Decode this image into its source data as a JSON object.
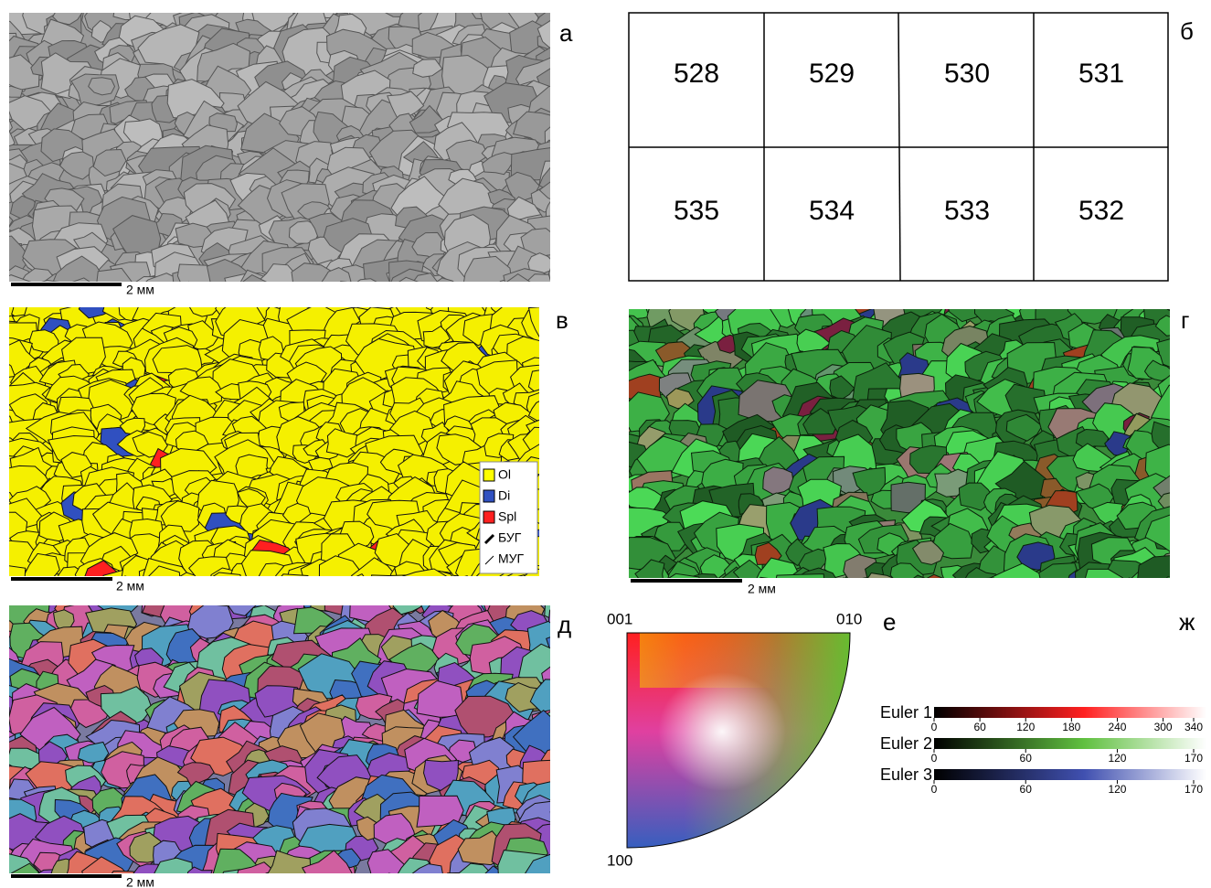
{
  "panels": {
    "a": {
      "letter": "а",
      "scale": "2 мм"
    },
    "b": {
      "letter": "б",
      "rows": [
        [
          "528",
          "529",
          "530",
          "531"
        ],
        [
          "535",
          "534",
          "533",
          "532"
        ]
      ]
    },
    "v": {
      "letter": "в",
      "scale": "2 мм",
      "legend": [
        {
          "label": "Ol",
          "color": "#ffff00"
        },
        {
          "label": "Di",
          "color": "#3050c0"
        },
        {
          "label": "Spl",
          "color": "#ff2020"
        },
        {
          "label": "БУГ"
        },
        {
          "label": "МУГ"
        }
      ]
    },
    "g": {
      "letter": "г",
      "scale": "2 мм"
    },
    "d": {
      "letter": "д",
      "scale": "2 мм"
    },
    "e": {
      "letter": "е",
      "corners": [
        "001",
        "010",
        "100"
      ]
    },
    "zh": {
      "letter": "ж",
      "euler": [
        {
          "label": "Euler 1",
          "color": "#ff2020",
          "ticks": [
            0,
            60,
            120,
            180,
            240,
            300,
            340
          ]
        },
        {
          "label": "Euler 2",
          "color": "#60c040",
          "ticks": [
            0,
            60,
            120,
            170
          ]
        },
        {
          "label": "Euler 3",
          "color": "#4050b0",
          "ticks": [
            0,
            60,
            120,
            170
          ]
        }
      ]
    }
  }
}
